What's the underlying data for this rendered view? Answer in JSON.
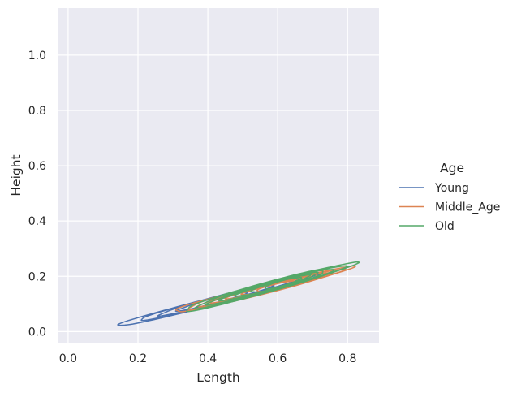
{
  "chart_data": {
    "type": "kde-contour",
    "xlabel": "Length",
    "ylabel": "Height",
    "xlim": [
      -0.03,
      0.89
    ],
    "ylim": [
      -0.04,
      1.17
    ],
    "x_ticks": [
      "0.0",
      "0.2",
      "0.4",
      "0.6",
      "0.8"
    ],
    "y_ticks": [
      "0.0",
      "0.2",
      "0.4",
      "0.6",
      "0.8",
      "1.0"
    ],
    "x_tick_values": [
      0.0,
      0.2,
      0.4,
      0.6,
      0.8
    ],
    "y_tick_values": [
      0.0,
      0.2,
      0.4,
      0.6,
      0.8,
      1.0
    ],
    "grid": true,
    "legend": {
      "title": "Age",
      "placement": "right"
    },
    "series": [
      {
        "name": "Young",
        "color": "#4c72b0",
        "center": [
          0.43,
          0.115
        ],
        "length_range": [
          0.13,
          0.71
        ],
        "height_range": [
          0.01,
          0.2
        ],
        "levels": 4
      },
      {
        "name": "Middle_Age",
        "color": "#dd8452",
        "center": [
          0.55,
          0.15
        ],
        "length_range": [
          0.28,
          0.79
        ],
        "height_range": [
          0.06,
          0.22
        ],
        "levels": 7
      },
      {
        "name": "Old",
        "color": "#55a868",
        "center": [
          0.57,
          0.16
        ],
        "length_range": [
          0.29,
          0.78
        ],
        "height_range": [
          0.07,
          0.24
        ],
        "levels": 7
      }
    ]
  }
}
